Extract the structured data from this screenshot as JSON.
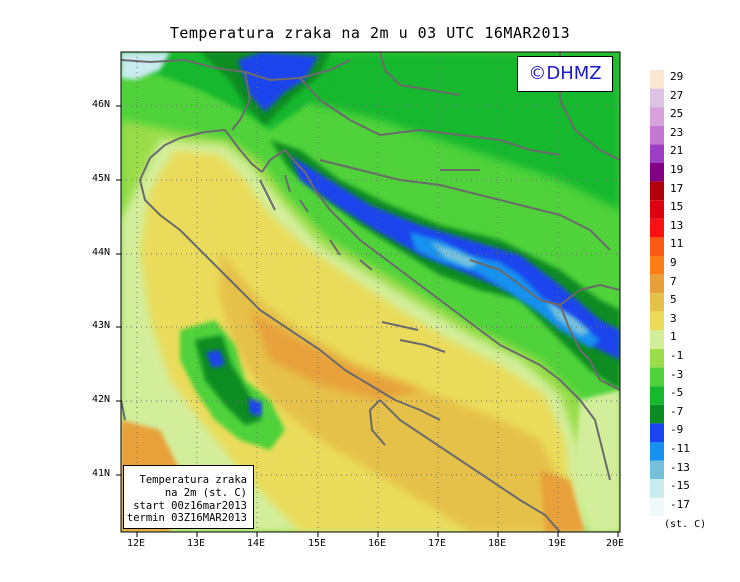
{
  "title": "Temperatura zraka na 2m u 03 UTC 16MAR2013",
  "copyright": "©DHMZ",
  "info_box": {
    "line1": "Temperatura zraka",
    "line2": "na 2m (st. C)",
    "line3": "start 00z16mar2013",
    "line4": "termin 03Z16MAR2013"
  },
  "axes": {
    "lon_labels": [
      "12E",
      "13E",
      "14E",
      "15E",
      "16E",
      "17E",
      "18E",
      "19E",
      "20E"
    ],
    "lat_labels": [
      "46N",
      "45N",
      "44N",
      "43N",
      "42N",
      "41N"
    ]
  },
  "legend": {
    "unit": "(st. C)",
    "labels": [
      "29",
      "27",
      "25",
      "23",
      "21",
      "19",
      "17",
      "15",
      "13",
      "11",
      "9",
      "7",
      "5",
      "3",
      "1",
      "-1",
      "-3",
      "-5",
      "-7",
      "-9",
      "-11",
      "-13",
      "-15",
      "-17"
    ],
    "colors": [
      "#fce6d4",
      "#dcc3e3",
      "#d7a2d9",
      "#c578d1",
      "#9d3fc4",
      "#820083",
      "#b2000a",
      "#dc0010",
      "#fa0f12",
      "#fa5914",
      "#fb7d16",
      "#e8a13a",
      "#e6c14a",
      "#eadc5a",
      "#d3ee9b",
      "#9add4a",
      "#4fd23a",
      "#16b82e",
      "#0a8c22",
      "#1a44ee",
      "#1691ef",
      "#74c0dd",
      "#c8ebee",
      "#f0fafb"
    ]
  }
}
